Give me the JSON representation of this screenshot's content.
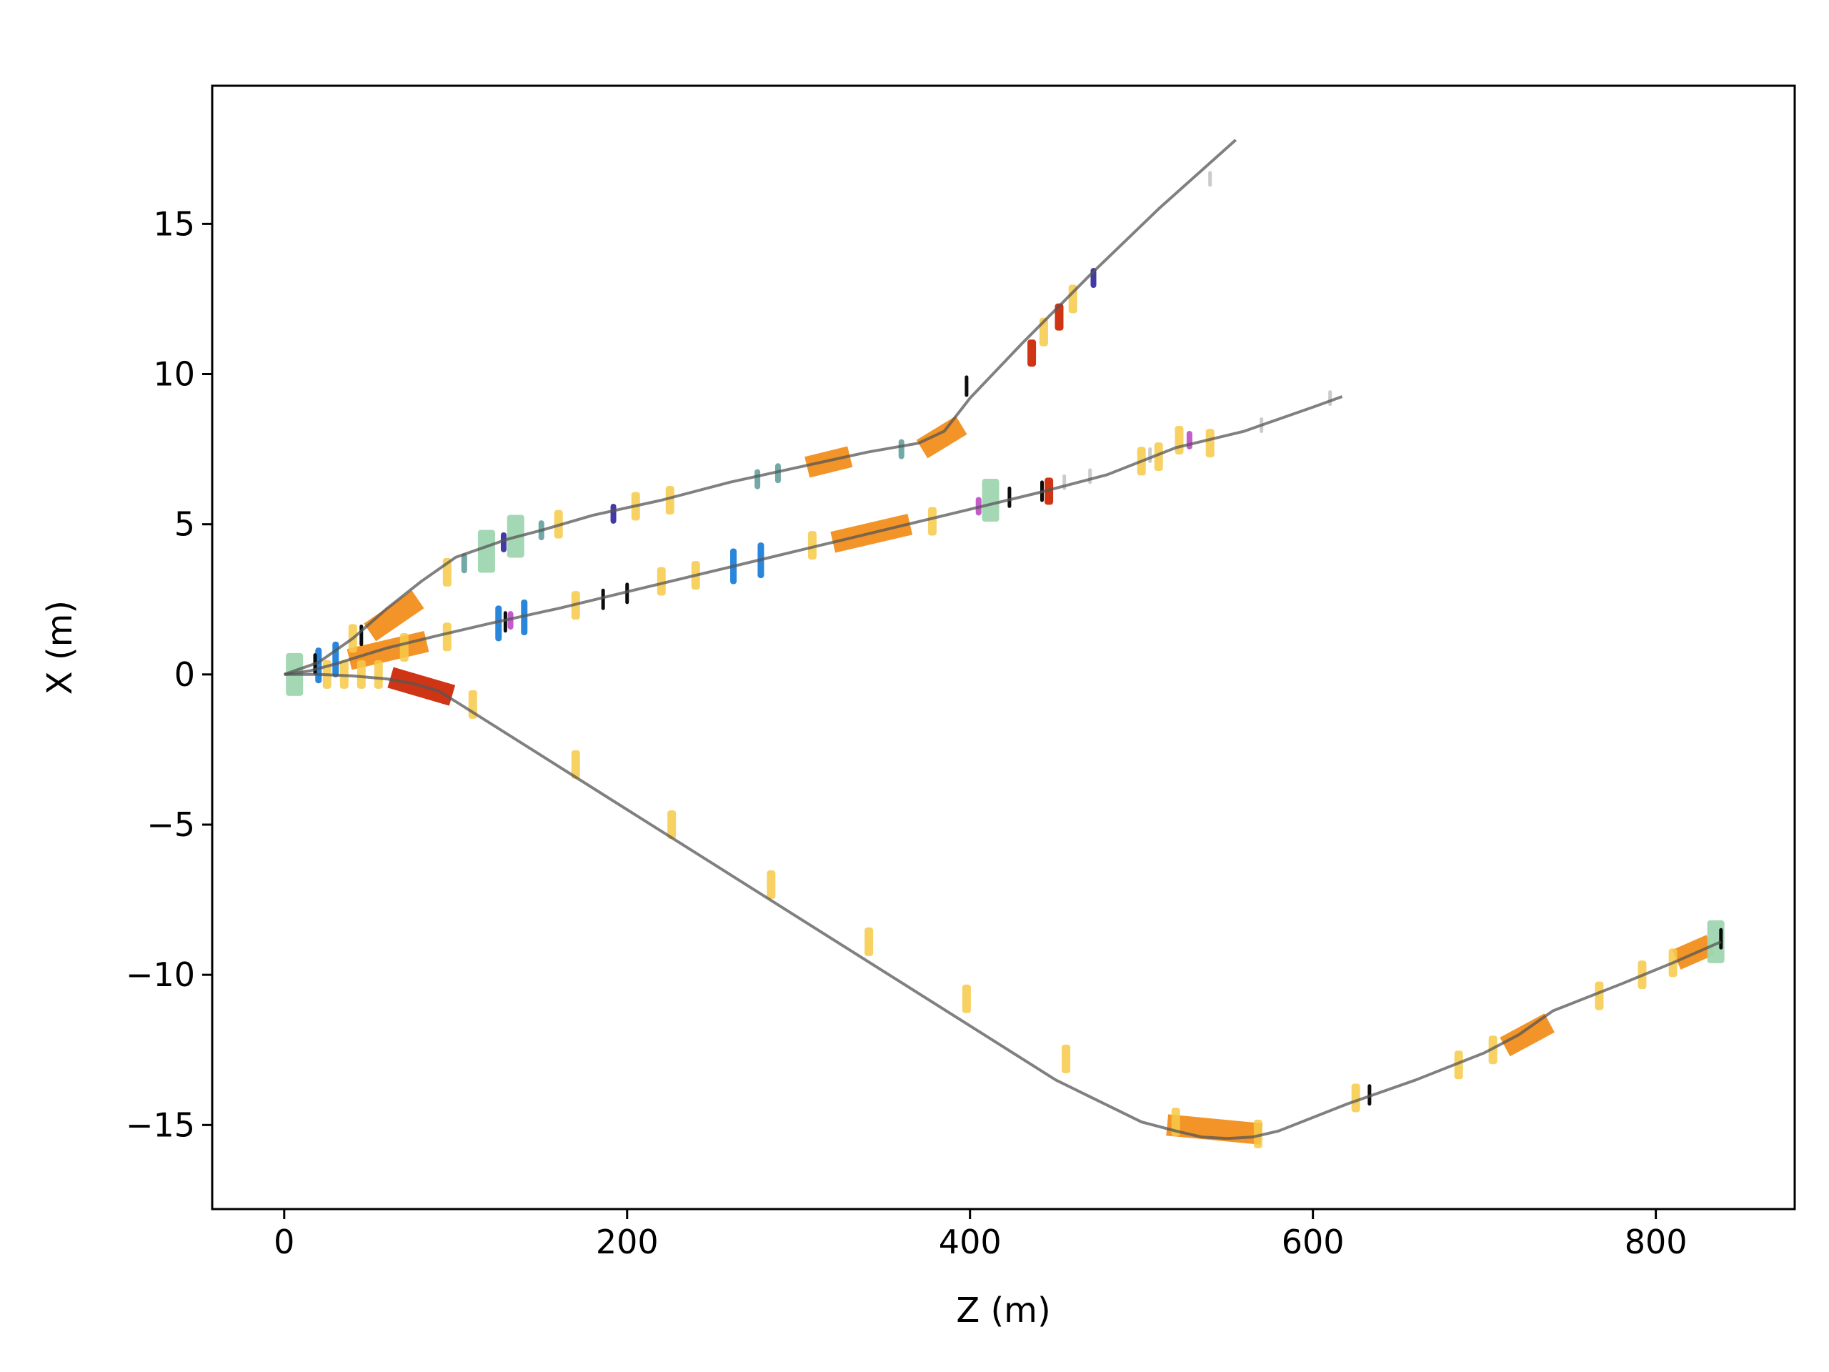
{
  "chart_data": {
    "type": "line",
    "title": "",
    "xlabel": "Z (m)",
    "ylabel": "X (m)",
    "xlim": [
      -42,
      881
    ],
    "ylim": [
      -17.8,
      19.6
    ],
    "xticks": [
      0,
      200,
      400,
      600,
      800
    ],
    "yticks": [
      -15,
      -10,
      -5,
      0,
      5,
      10,
      15
    ],
    "xtick_labels": [
      "0",
      "200",
      "400",
      "600",
      "800"
    ],
    "ytick_labels": [
      "−15",
      "−10",
      "−5",
      "0",
      "5",
      "10",
      "15"
    ],
    "grid": false,
    "legend": "none",
    "colors": {
      "beamline": "#555555",
      "quadrupole": "#f7c948",
      "dipole_orange": "#f28e1c",
      "dipole_red": "#cc2a08",
      "solenoid": "#9fd6b0",
      "corrector": "#1f7fd8",
      "monitor": "#000000",
      "kicker": "#3a2fa0",
      "collimator": "#6aa3a0",
      "marker_magenta": "#c052c8",
      "drift_grey": "#c8c8c8"
    },
    "series": [
      {
        "x": [
          0,
          20,
          40,
          60,
          80,
          100,
          120,
          130,
          150,
          180,
          220,
          260,
          300,
          340,
          370,
          385,
          400,
          430,
          470,
          510,
          555
        ],
        "y": [
          0,
          0.4,
          1.2,
          2.2,
          3.1,
          3.9,
          4.3,
          4.5,
          4.8,
          5.3,
          5.8,
          6.4,
          6.9,
          7.4,
          7.7,
          8.1,
          9.2,
          11.0,
          13.3,
          15.5,
          17.8
        ]
      },
      {
        "x": [
          0,
          15,
          30,
          45,
          60,
          90,
          120,
          160,
          200,
          240,
          280,
          320,
          360,
          400,
          440,
          480,
          520,
          560,
          600,
          617
        ],
        "y": [
          0,
          0.12,
          0.35,
          0.62,
          0.88,
          1.3,
          1.7,
          2.2,
          2.75,
          3.3,
          3.85,
          4.4,
          4.95,
          5.5,
          6.05,
          6.65,
          7.55,
          8.1,
          8.9,
          9.25
        ]
      },
      {
        "x": [
          0,
          20,
          40,
          60,
          75,
          90,
          100,
          150,
          200,
          250,
          300,
          350,
          400,
          450,
          500,
          520,
          535,
          550,
          565,
          580,
          620,
          660,
          700,
          720,
          740,
          780,
          810,
          838
        ],
        "y": [
          0,
          0,
          -0.05,
          -0.15,
          -0.3,
          -0.55,
          -0.9,
          -2.7,
          -4.5,
          -6.3,
          -8.1,
          -9.9,
          -11.7,
          -13.5,
          -14.9,
          -15.2,
          -15.4,
          -15.45,
          -15.4,
          -15.2,
          -14.3,
          -13.5,
          -12.6,
          -12.0,
          -11.2,
          -10.3,
          -9.6,
          -8.9
        ]
      }
    ],
    "elements": {
      "quadrupole": [
        [
          40,
          1.2
        ],
        [
          95,
          3.4
        ],
        [
          160,
          5.0
        ],
        [
          205,
          5.6
        ],
        [
          225,
          5.8
        ],
        [
          70,
          0.9
        ],
        [
          95,
          1.25
        ],
        [
          170,
          2.3
        ],
        [
          220,
          3.1
        ],
        [
          240,
          3.3
        ],
        [
          308,
          4.3
        ],
        [
          378,
          5.1
        ],
        [
          500,
          7.1
        ],
        [
          510,
          7.25
        ],
        [
          540,
          7.7
        ],
        [
          443,
          11.4
        ],
        [
          460,
          12.5
        ],
        [
          522,
          7.8
        ],
        [
          25,
          0
        ],
        [
          35,
          0
        ],
        [
          45,
          0
        ],
        [
          55,
          0
        ],
        [
          110,
          -1.0
        ],
        [
          170,
          -3.0
        ],
        [
          226,
          -5.0
        ],
        [
          284,
          -7.0
        ],
        [
          341,
          -8.9
        ],
        [
          398,
          -10.8
        ],
        [
          456,
          -12.8
        ],
        [
          520,
          -14.9
        ],
        [
          568,
          -15.3
        ],
        [
          625,
          -14.1
        ],
        [
          685,
          -13.0
        ],
        [
          705,
          -12.5
        ],
        [
          767,
          -10.7
        ],
        [
          792,
          -10.0
        ],
        [
          810,
          -9.6
        ]
      ],
      "dipole_orange": [
        {
          "z0": 50,
          "z1": 78,
          "x0": 1.4,
          "x1": 2.5
        },
        {
          "z0": 38,
          "z1": 83,
          "x0": 0.5,
          "x1": 1.1
        },
        {
          "z0": 305,
          "z1": 330,
          "x0": 6.9,
          "x1": 7.25
        },
        {
          "z0": 320,
          "z1": 365,
          "x0": 4.4,
          "x1": 5.0
        },
        {
          "z0": 372,
          "z1": 395,
          "x0": 7.5,
          "x1": 8.3
        },
        {
          "z0": 515,
          "z1": 570,
          "x0": -15.0,
          "x1": -15.3
        },
        {
          "z0": 712,
          "z1": 738,
          "x0": -12.4,
          "x1": -11.6
        },
        {
          "z0": 812,
          "z1": 832,
          "x0": -9.5,
          "x1": -9.0
        }
      ],
      "dipole_red": [
        {
          "z0": 62,
          "z1": 98,
          "x0": -0.1,
          "x1": -0.7
        },
        [
          436,
          10.7
        ],
        [
          452,
          11.9
        ],
        [
          446,
          6.1
        ]
      ],
      "solenoid": [
        [
          6,
          0
        ],
        [
          118,
          4.1
        ],
        [
          135,
          4.6
        ],
        [
          412,
          5.8
        ],
        [
          835,
          -8.9
        ]
      ],
      "corrector": [
        [
          20,
          0.3
        ],
        [
          30,
          0.5
        ],
        [
          125,
          1.7
        ],
        [
          140,
          1.9
        ],
        [
          262,
          3.6
        ],
        [
          278,
          3.8
        ]
      ],
      "monitor": [
        [
          18,
          0.35
        ],
        [
          45,
          1.3
        ],
        [
          129,
          1.75
        ],
        [
          186,
          2.5
        ],
        [
          200,
          2.7
        ],
        [
          398,
          9.6
        ],
        [
          423,
          5.9
        ],
        [
          442,
          6.1
        ],
        [
          633,
          -14.0
        ],
        [
          838,
          -8.8
        ]
      ],
      "kicker": [
        [
          192,
          5.35
        ],
        [
          472,
          13.2
        ],
        [
          128,
          4.4
        ]
      ],
      "collimator": [
        [
          105,
          3.7
        ],
        [
          150,
          4.8
        ],
        [
          276,
          6.5
        ],
        [
          360,
          7.5
        ],
        [
          288,
          6.7
        ]
      ],
      "marker_magenta": [
        [
          132,
          1.8
        ],
        [
          405,
          5.6
        ],
        [
          528,
          7.8
        ]
      ],
      "drift_grey": [
        [
          455,
          6.4
        ],
        [
          470,
          6.6
        ],
        [
          505,
          7.3
        ],
        [
          570,
          8.3
        ],
        [
          610,
          9.2
        ],
        [
          540,
          16.5
        ]
      ]
    }
  }
}
